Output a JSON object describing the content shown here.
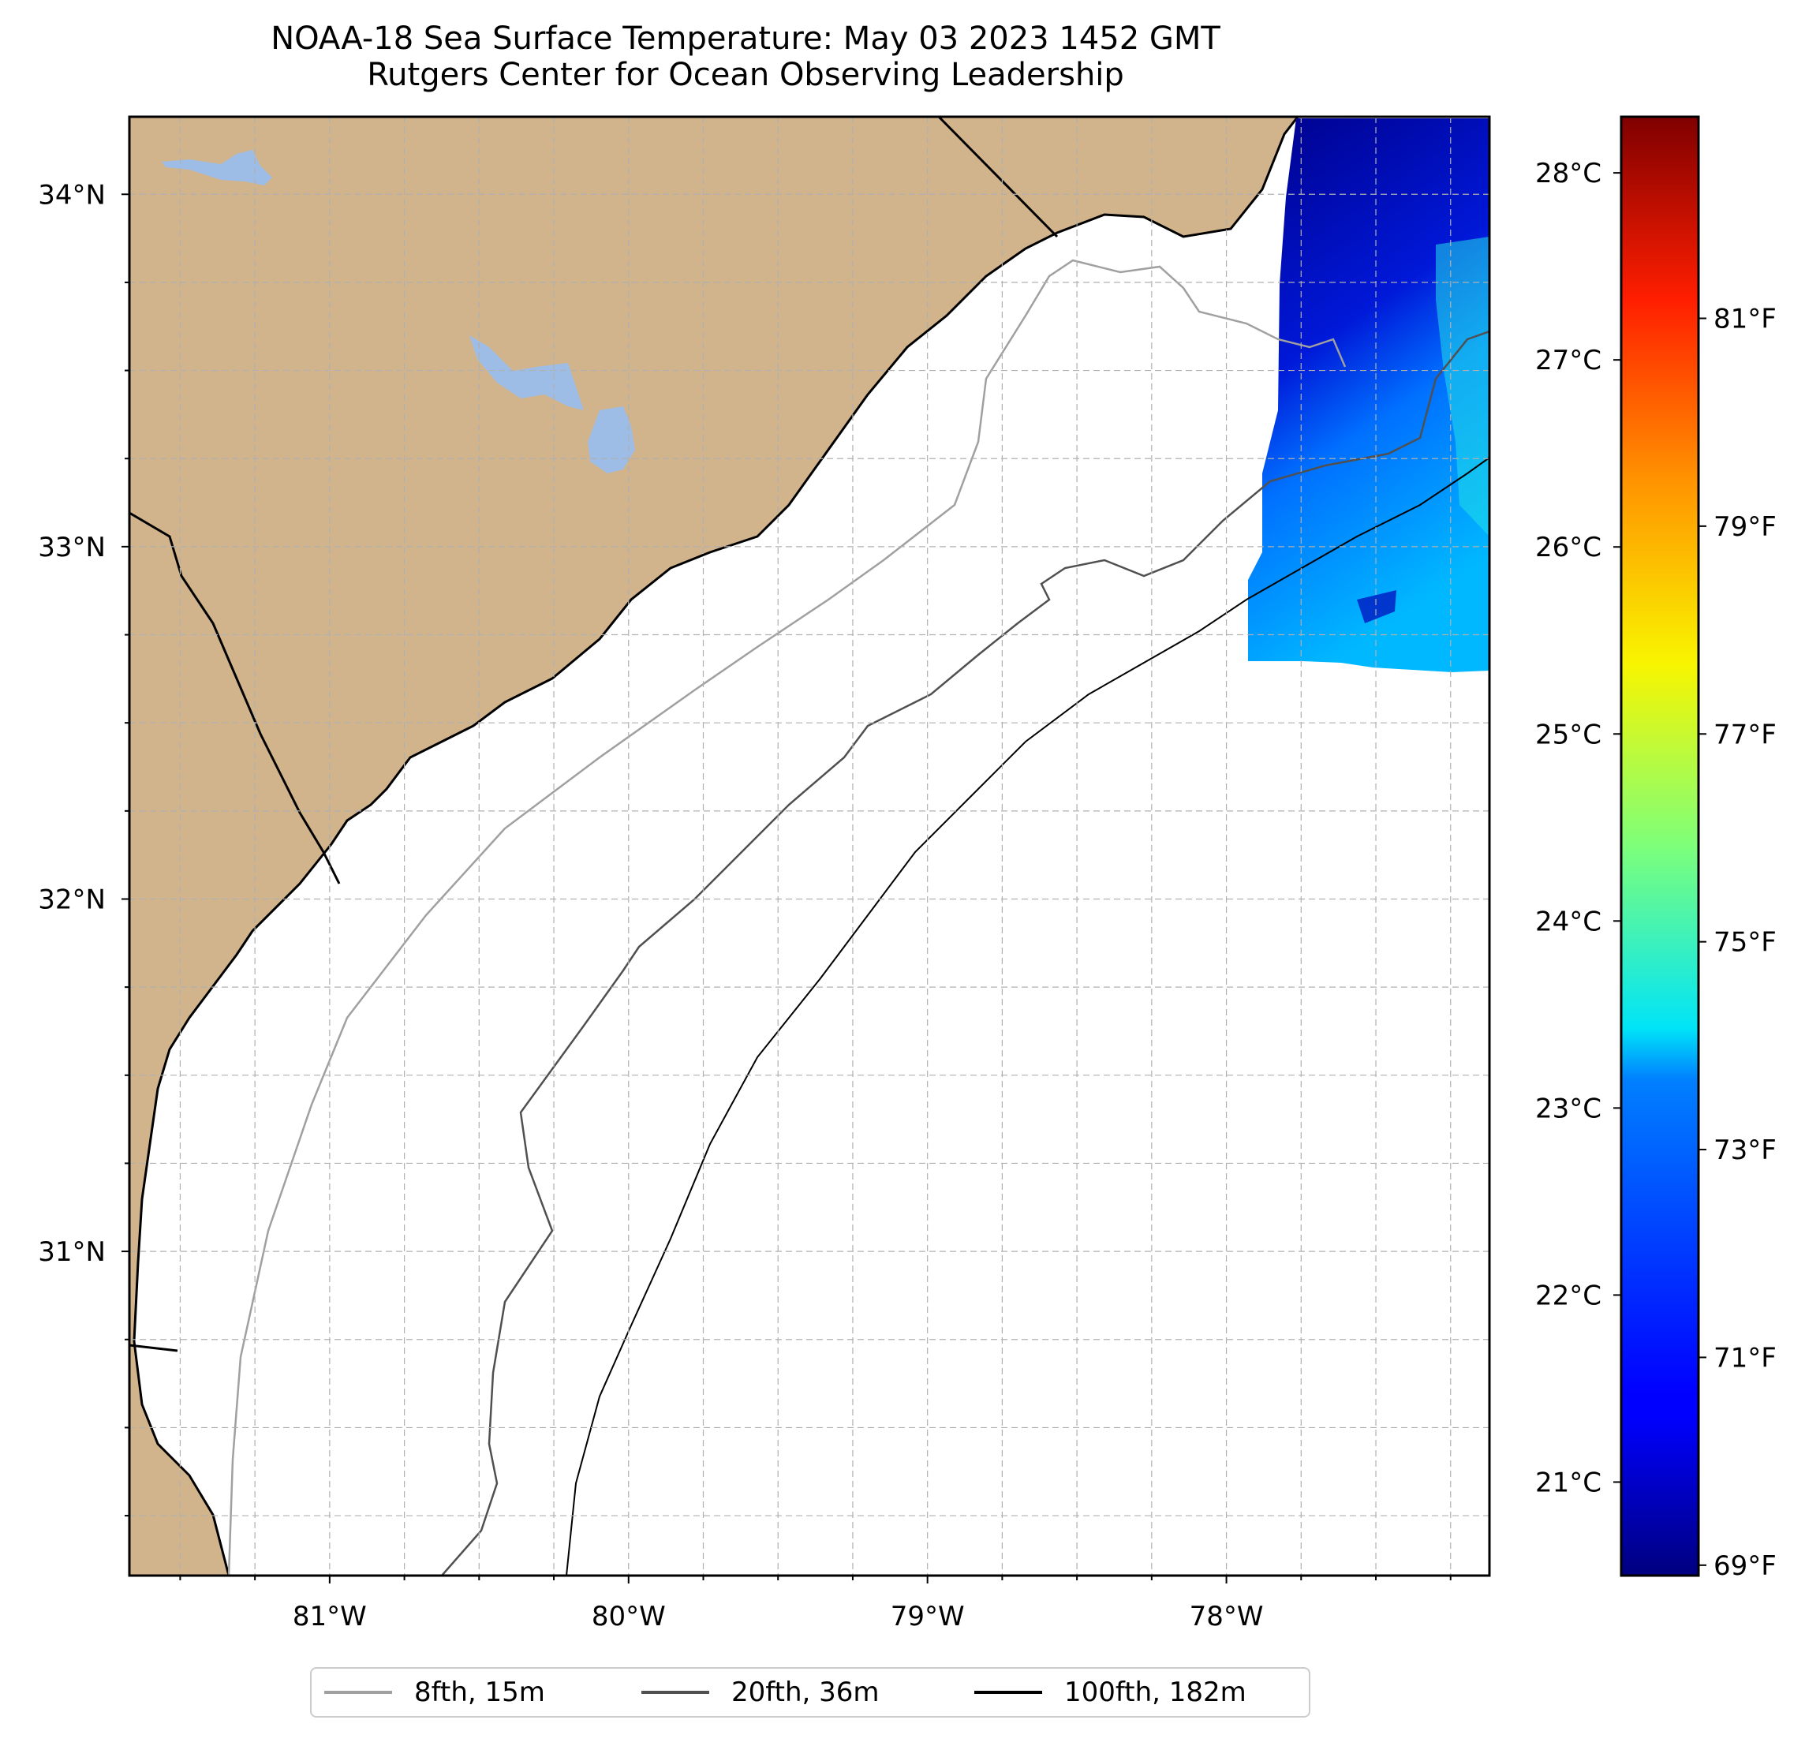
{
  "title": {
    "line1": "NOAA-18 Sea Surface Temperature: May 03 2023 1452 GMT",
    "line2": "Rutgers Center for Ocean Observing Leadership"
  },
  "map": {
    "extent": {
      "lon_min": -81.67,
      "lon_max": -77.12,
      "lat_min": 30.08,
      "lat_max": 34.22
    },
    "lat_ticks": [
      {
        "value": 34,
        "label": "34°N"
      },
      {
        "value": 33,
        "label": "33°N"
      },
      {
        "value": 32,
        "label": "32°N"
      },
      {
        "value": 31,
        "label": "31°N"
      }
    ],
    "lon_ticks": [
      {
        "value": -81,
        "label": "81°W"
      },
      {
        "value": -80,
        "label": "80°W"
      },
      {
        "value": -79,
        "label": "79°W"
      },
      {
        "value": -78,
        "label": "78°W"
      }
    ],
    "colors": {
      "land": "#d2b48c",
      "water": "#9dbde6",
      "ocean": "#ffffff",
      "grid": "#b0b0b0"
    }
  },
  "colorbar": {
    "colormap": "jet",
    "celsius_range": [
      20.5,
      28.3
    ],
    "celsius_ticks": [
      {
        "value": 28,
        "label": "28°C"
      },
      {
        "value": 27,
        "label": "27°C"
      },
      {
        "value": 26,
        "label": "26°C"
      },
      {
        "value": 25,
        "label": "25°C"
      },
      {
        "value": 24,
        "label": "24°C"
      },
      {
        "value": 23,
        "label": "23°C"
      },
      {
        "value": 22,
        "label": "22°C"
      },
      {
        "value": 21,
        "label": "21°C"
      }
    ],
    "fahrenheit_ticks": [
      {
        "value": 81,
        "label": "81°F"
      },
      {
        "value": 79,
        "label": "79°F"
      },
      {
        "value": 77,
        "label": "77°F"
      },
      {
        "value": 75,
        "label": "75°F"
      },
      {
        "value": 73,
        "label": "73°F"
      },
      {
        "value": 71,
        "label": "71°F"
      },
      {
        "value": 69,
        "label": "69°F"
      }
    ]
  },
  "legend": {
    "entries": [
      {
        "label": "8fth, 15m",
        "color": "#a0a0a0"
      },
      {
        "label": "20fth, 36m",
        "color": "#505050"
      },
      {
        "label": "100fth, 182m",
        "color": "#000000"
      }
    ]
  }
}
